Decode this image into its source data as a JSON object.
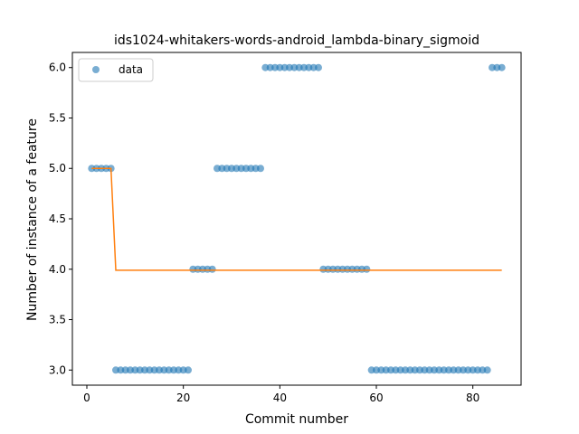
{
  "chart_data": {
    "type": "scatter",
    "title": "ids1024-whitakers-words-android_lambda-binary_sigmoid",
    "xlabel": "Commit number",
    "ylabel": "Number of instance of a feature",
    "xlim": [
      -3,
      90
    ],
    "ylim": [
      2.85,
      6.15
    ],
    "xticks": [
      0,
      20,
      40,
      60,
      80
    ],
    "yticks": [
      3.0,
      3.5,
      4.0,
      4.5,
      5.0,
      5.5,
      6.0
    ],
    "ytick_labels": [
      "3.0",
      "3.5",
      "4.0",
      "4.5",
      "5.0",
      "5.5",
      "6.0"
    ],
    "grid": false,
    "legend": {
      "position": "upper-left",
      "entries": [
        "data"
      ]
    },
    "colors": {
      "data": "#1f77b4",
      "fit": "#ff7f0e"
    },
    "series": [
      {
        "name": "data",
        "kind": "scatter",
        "x": [
          1,
          2,
          3,
          4,
          5,
          6,
          7,
          8,
          9,
          10,
          11,
          12,
          13,
          14,
          15,
          16,
          17,
          18,
          19,
          20,
          21,
          22,
          23,
          24,
          25,
          26,
          27,
          28,
          29,
          30,
          31,
          32,
          33,
          34,
          35,
          36,
          37,
          38,
          39,
          40,
          41,
          42,
          43,
          44,
          45,
          46,
          47,
          48,
          49,
          50,
          51,
          52,
          53,
          54,
          55,
          56,
          57,
          58,
          59,
          60,
          61,
          62,
          63,
          64,
          65,
          66,
          67,
          68,
          69,
          70,
          71,
          72,
          73,
          74,
          75,
          76,
          77,
          78,
          79,
          80,
          81,
          82,
          83,
          84,
          85,
          86
        ],
        "y": [
          5,
          5,
          5,
          5,
          5,
          3,
          3,
          3,
          3,
          3,
          3,
          3,
          3,
          3,
          3,
          3,
          3,
          3,
          3,
          3,
          3,
          4,
          4,
          4,
          4,
          4,
          5,
          5,
          5,
          5,
          5,
          5,
          5,
          5,
          5,
          5,
          6,
          6,
          6,
          6,
          6,
          6,
          6,
          6,
          6,
          6,
          6,
          6,
          4,
          4,
          4,
          4,
          4,
          4,
          4,
          4,
          4,
          4,
          3,
          3,
          3,
          3,
          3,
          3,
          3,
          3,
          3,
          3,
          3,
          3,
          3,
          3,
          3,
          3,
          3,
          3,
          3,
          3,
          3,
          3,
          3,
          3,
          3,
          6,
          6,
          6
        ]
      },
      {
        "kind": "line",
        "x": [
          1,
          5,
          6,
          86
        ],
        "y": [
          5.0,
          5.0,
          3.99,
          3.99
        ]
      }
    ]
  }
}
